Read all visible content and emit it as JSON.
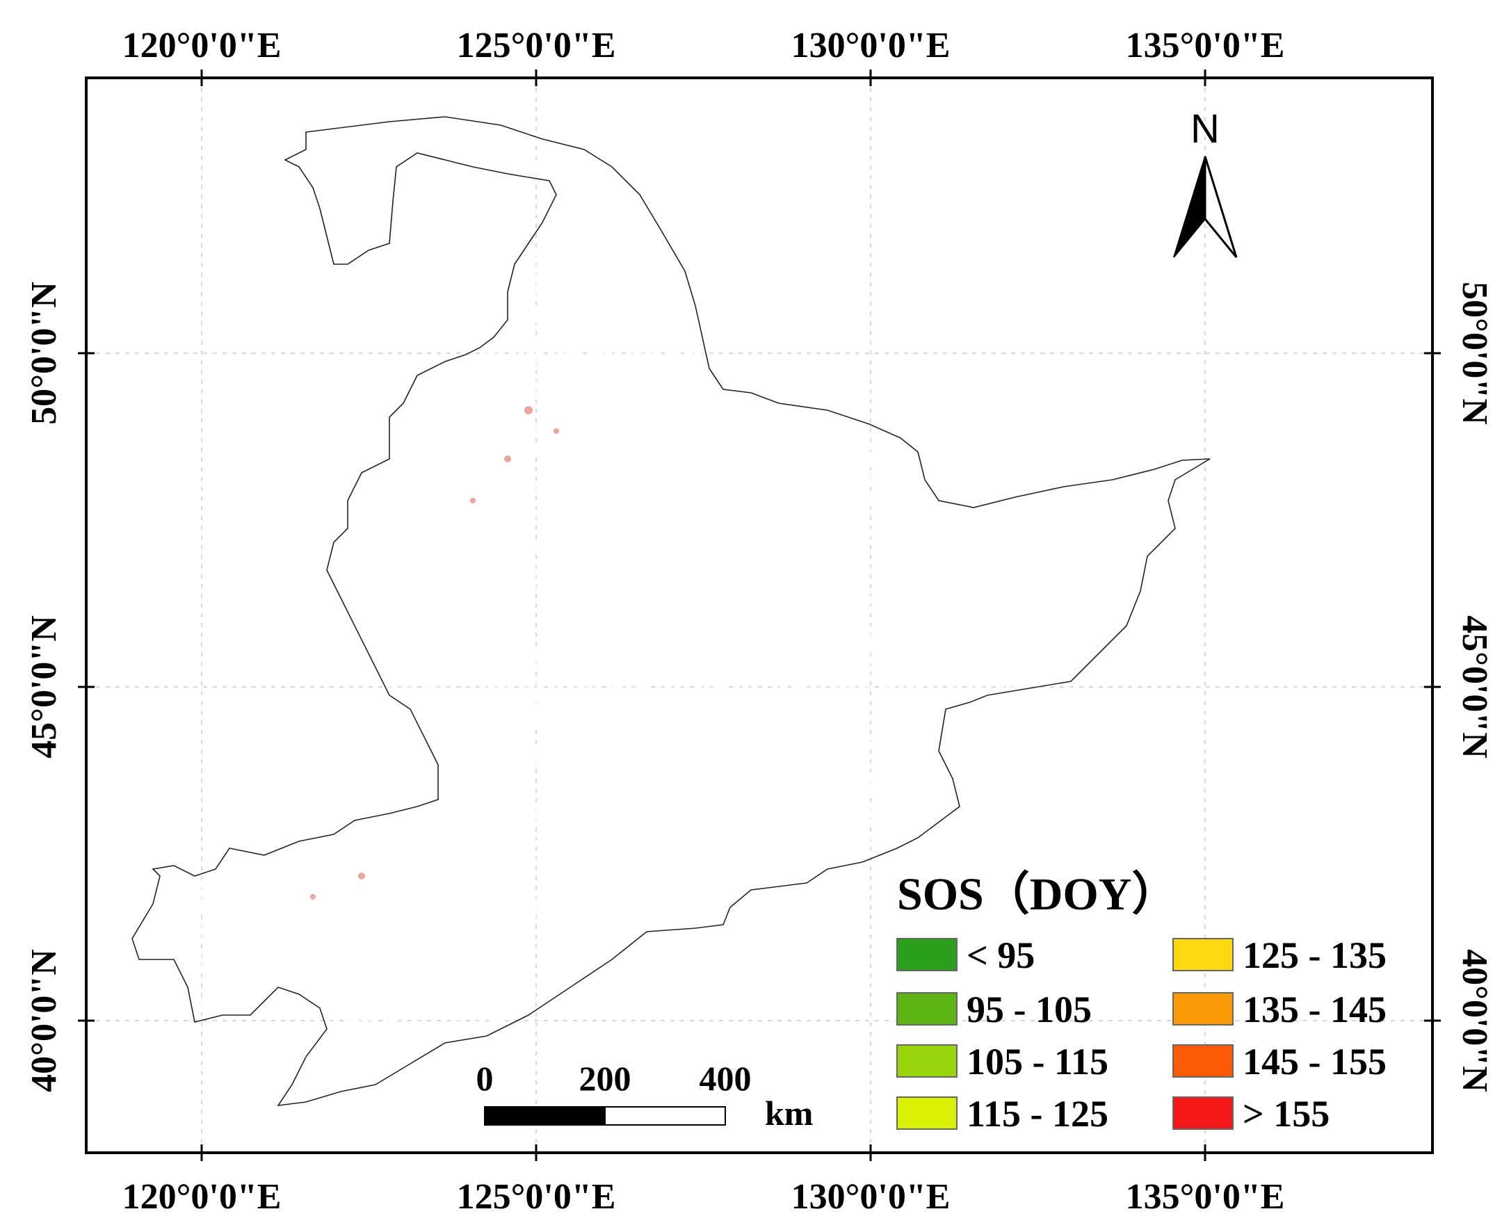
{
  "map": {
    "top_ticks": [
      "120°0'0\"E",
      "125°0'0\"E",
      "130°0'0\"E",
      "135°0'0\"E"
    ],
    "bottom_ticks": [
      "120°0'0\"E",
      "125°0'0\"E",
      "130°0'0\"E",
      "135°0'0\"E"
    ],
    "left_ticks": [
      "50°0'0\"N",
      "45°0'0\"N",
      "40°0'0\"N"
    ],
    "right_ticks": [
      "50°0'0\"N",
      "45°0'0\"N",
      "40°0'0\"N"
    ],
    "north_arrow": {
      "label": "N",
      "icon": "north-arrow-icon"
    },
    "scale_bar": {
      "labels": [
        "0",
        "200",
        "400"
      ],
      "unit": "km"
    },
    "legend": {
      "title": "SOS（DOY）",
      "classes": [
        {
          "label": "< 95",
          "color": "#2ca01c"
        },
        {
          "label": "95 - 105",
          "color": "#5cb515"
        },
        {
          "label": "105 - 115",
          "color": "#9ad40c"
        },
        {
          "label": "115 - 125",
          "color": "#d9ef04"
        },
        {
          "label": "125 - 135",
          "color": "#fcd810"
        },
        {
          "label": "135 - 145",
          "color": "#fb9a08"
        },
        {
          "label": "145 - 155",
          "color": "#fb5a06"
        },
        {
          "label": "> 155",
          "color": "#f51818"
        }
      ]
    }
  }
}
